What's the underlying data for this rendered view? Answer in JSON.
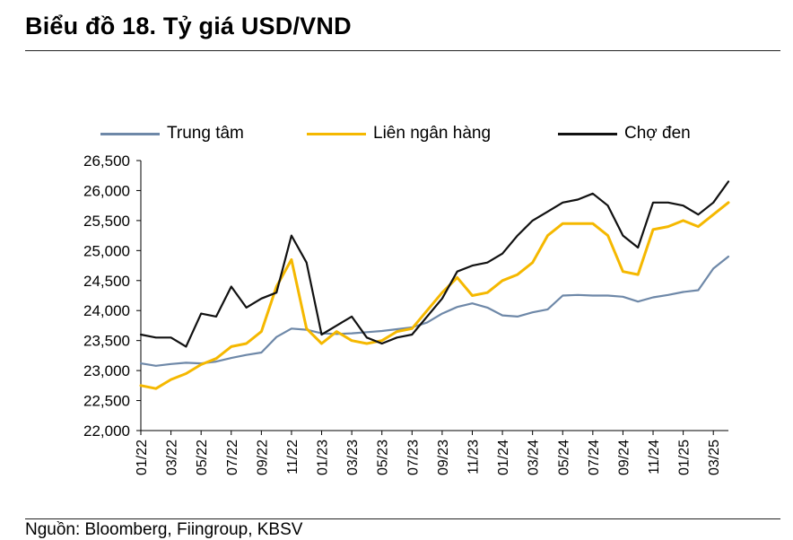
{
  "header": {
    "title": "Biểu đồ 18. Tỷ giá USD/VND",
    "source": "Nguồn: Bloomberg, Fiingroup, KBSV"
  },
  "chart_data": {
    "type": "line",
    "title": "Biểu đồ 18. Tỷ giá USD/VND",
    "xlabel": "",
    "ylabel": "",
    "ylim": [
      22000,
      26500
    ],
    "y_ticks": [
      22000,
      22500,
      23000,
      23500,
      24000,
      24500,
      25000,
      25500,
      26000,
      26500
    ],
    "x_tick_labels": [
      "01/22",
      "03/22",
      "05/22",
      "07/22",
      "09/22",
      "11/22",
      "01/23",
      "03/23",
      "05/23",
      "07/23",
      "09/23",
      "11/23",
      "01/24",
      "03/24",
      "05/24",
      "07/24",
      "09/24",
      "11/24",
      "01/25",
      "03/25"
    ],
    "x_range": [
      "2022-01",
      "2025-04"
    ],
    "grid": false,
    "legend_position": "top",
    "series": [
      {
        "name": "Trung tâm",
        "color": "#6e88a8",
        "x": [
          "2022-01",
          "2022-02",
          "2022-03",
          "2022-04",
          "2022-05",
          "2022-06",
          "2022-07",
          "2022-08",
          "2022-09",
          "2022-10",
          "2022-11",
          "2022-12",
          "2023-01",
          "2023-02",
          "2023-03",
          "2023-04",
          "2023-05",
          "2023-06",
          "2023-07",
          "2023-08",
          "2023-09",
          "2023-10",
          "2023-11",
          "2023-12",
          "2024-01",
          "2024-02",
          "2024-03",
          "2024-04",
          "2024-05",
          "2024-06",
          "2024-07",
          "2024-08",
          "2024-09",
          "2024-10",
          "2024-11",
          "2024-12",
          "2025-01",
          "2025-02",
          "2025-03",
          "2025-04"
        ],
        "values": [
          23120,
          23080,
          23110,
          23130,
          23120,
          23150,
          23210,
          23260,
          23300,
          23560,
          23700,
          23680,
          23620,
          23610,
          23620,
          23640,
          23660,
          23690,
          23720,
          23800,
          23950,
          24060,
          24120,
          24050,
          23920,
          23900,
          23970,
          24020,
          24250,
          24260,
          24250,
          24250,
          24230,
          24150,
          24220,
          24260,
          24310,
          24340,
          24700,
          24900
        ]
      },
      {
        "name": "Liên ngân hàng",
        "color": "#f5b800",
        "x": [
          "2022-01",
          "2022-02",
          "2022-03",
          "2022-04",
          "2022-05",
          "2022-06",
          "2022-07",
          "2022-08",
          "2022-09",
          "2022-10",
          "2022-11",
          "2022-12",
          "2023-01",
          "2023-02",
          "2023-03",
          "2023-04",
          "2023-05",
          "2023-06",
          "2023-07",
          "2023-08",
          "2023-09",
          "2023-10",
          "2023-11",
          "2023-12",
          "2024-01",
          "2024-02",
          "2024-03",
          "2024-04",
          "2024-05",
          "2024-06",
          "2024-07",
          "2024-08",
          "2024-09",
          "2024-10",
          "2024-11",
          "2024-12",
          "2025-01",
          "2025-02",
          "2025-03",
          "2025-04"
        ],
        "values": [
          22750,
          22700,
          22850,
          22950,
          23100,
          23200,
          23400,
          23450,
          23650,
          24400,
          24850,
          23700,
          23450,
          23650,
          23500,
          23450,
          23500,
          23650,
          23700,
          24000,
          24300,
          24550,
          24250,
          24300,
          24500,
          24600,
          24800,
          25250,
          25450,
          25450,
          25450,
          25250,
          24650,
          24600,
          25350,
          25400,
          25500,
          25400,
          25600,
          25800
        ]
      },
      {
        "name": "Chợ đen",
        "color": "#111111",
        "x": [
          "2022-01",
          "2022-02",
          "2022-03",
          "2022-04",
          "2022-05",
          "2022-06",
          "2022-07",
          "2022-08",
          "2022-09",
          "2022-10",
          "2022-11",
          "2022-12",
          "2023-01",
          "2023-02",
          "2023-03",
          "2023-04",
          "2023-05",
          "2023-06",
          "2023-07",
          "2023-08",
          "2023-09",
          "2023-10",
          "2023-11",
          "2023-12",
          "2024-01",
          "2024-02",
          "2024-03",
          "2024-04",
          "2024-05",
          "2024-06",
          "2024-07",
          "2024-08",
          "2024-09",
          "2024-10",
          "2024-11",
          "2024-12",
          "2025-01",
          "2025-02",
          "2025-03",
          "2025-04"
        ],
        "values": [
          23600,
          23550,
          23550,
          23400,
          23950,
          23900,
          24400,
          24050,
          24200,
          24300,
          25250,
          24800,
          23600,
          23750,
          23900,
          23550,
          23450,
          23550,
          23600,
          23900,
          24200,
          24650,
          24750,
          24800,
          24950,
          25250,
          25500,
          25650,
          25800,
          25850,
          25950,
          25750,
          25250,
          25050,
          25800,
          25800,
          25750,
          25600,
          25800,
          26150
        ]
      }
    ]
  }
}
